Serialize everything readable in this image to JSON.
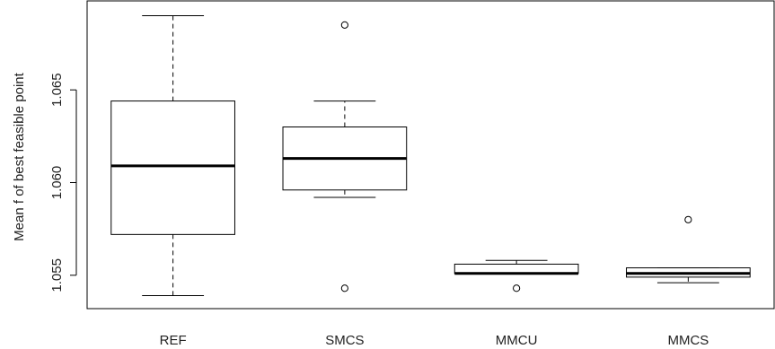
{
  "chart_data": {
    "type": "boxplot",
    "title": "",
    "xlabel": "",
    "ylabel": "Mean f of best feasible point",
    "ylim": [
      1.0532,
      1.0698
    ],
    "y_ticks": [
      1.055,
      1.06,
      1.065
    ],
    "y_tick_labels": [
      "1.055",
      "1.060",
      "1.065"
    ],
    "grid": false,
    "categories": [
      "REF",
      "SMCS",
      "MMCU",
      "MMCS"
    ],
    "boxes": [
      {
        "name": "REF",
        "whisker_low": 1.0539,
        "q1": 1.0572,
        "median": 1.0609,
        "q3": 1.0644,
        "whisker_high": 1.069,
        "outliers": []
      },
      {
        "name": "SMCS",
        "whisker_low": 1.0592,
        "q1": 1.0596,
        "median": 1.0613,
        "q3": 1.063,
        "whisker_high": 1.0644,
        "outliers": [
          1.0685,
          1.0543
        ]
      },
      {
        "name": "MMCU",
        "whisker_low": 1.0551,
        "q1": 1.0551,
        "median": 1.0551,
        "q3": 1.0556,
        "whisker_high": 1.0558,
        "outliers": [
          1.0543
        ]
      },
      {
        "name": "MMCS",
        "whisker_low": 1.0546,
        "q1": 1.0549,
        "median": 1.0551,
        "q3": 1.0554,
        "whisker_high": 1.0554,
        "outliers": [
          1.058
        ]
      }
    ]
  }
}
